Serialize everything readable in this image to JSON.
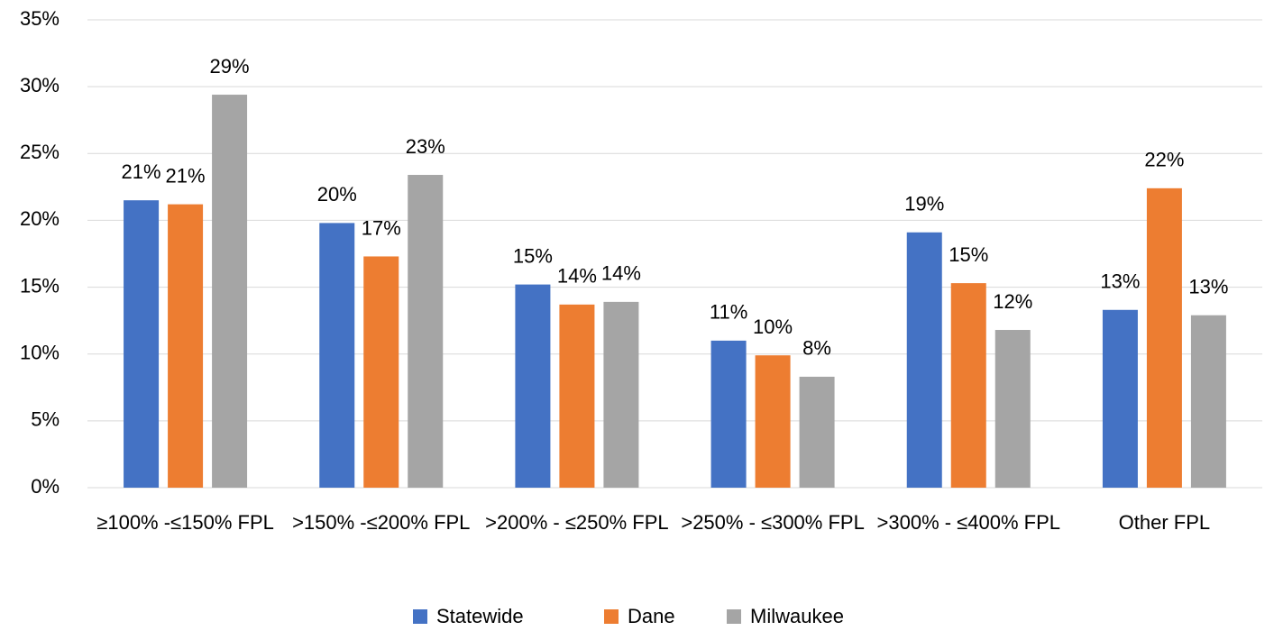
{
  "chart_data": {
    "type": "bar",
    "categories": [
      "≥100% -≤150% FPL",
      ">150% -≤200% FPL",
      ">200% - ≤250% FPL",
      ">250% - ≤300% FPL",
      ">300% - ≤400% FPL",
      "Other FPL"
    ],
    "series": [
      {
        "name": "Statewide",
        "color": "#4472c4",
        "values": [
          21.5,
          19.8,
          15.2,
          11.0,
          19.1,
          13.3
        ],
        "value_labels": [
          "21%",
          "20%",
          "15%",
          "11%",
          "19%",
          "13%"
        ]
      },
      {
        "name": "Dane",
        "color": "#ed7d31",
        "values": [
          21.2,
          17.3,
          13.7,
          9.9,
          15.3,
          22.4
        ],
        "value_labels": [
          "21%",
          "17%",
          "14%",
          "10%",
          "15%",
          "22%"
        ]
      },
      {
        "name": "Milwaukee",
        "color": "#a5a5a5",
        "values": [
          29.4,
          23.4,
          13.9,
          8.3,
          11.8,
          12.9
        ],
        "value_labels": [
          "29%",
          "23%",
          "14%",
          "8%",
          "12%",
          "13%"
        ]
      }
    ],
    "ylim": [
      0,
      35
    ],
    "yticks": [
      {
        "value": 0,
        "label": "0%"
      },
      {
        "value": 5,
        "label": "5%"
      },
      {
        "value": 10,
        "label": "10%"
      },
      {
        "value": 15,
        "label": "15%"
      },
      {
        "value": 20,
        "label": "20%"
      },
      {
        "value": 25,
        "label": "25%"
      },
      {
        "value": 30,
        "label": "30%"
      },
      {
        "value": 35,
        "label": "35%"
      }
    ],
    "grid": true,
    "legend": "bottom"
  }
}
